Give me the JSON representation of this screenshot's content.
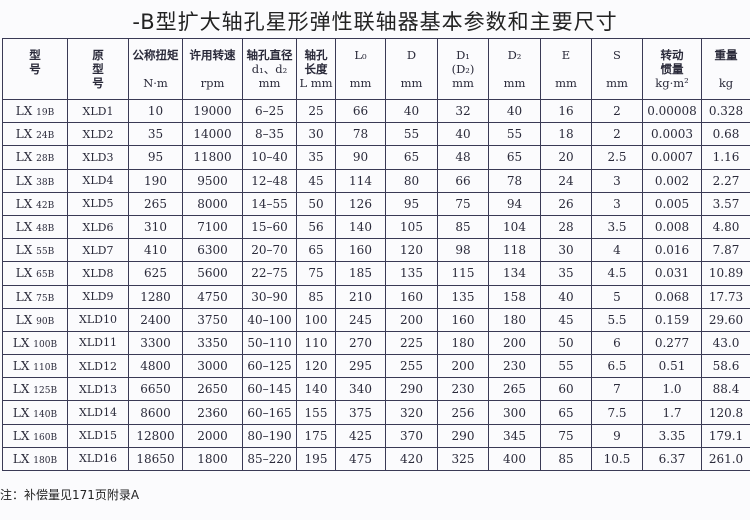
{
  "title": "-B型扩大轴孔星形弹性联轴器基本参数和主要尺寸",
  "headers": [
    {
      "l1": "型",
      "l2": "号",
      "l3": ""
    },
    {
      "l1": "原",
      "l2": "型",
      "l3": "号"
    },
    {
      "l1": "公称扭矩",
      "l2": "",
      "l3": "N·m"
    },
    {
      "l1": "许用转速",
      "l2": "",
      "l3": "rpm"
    },
    {
      "l1": "轴孔直径",
      "l2": "d₁、d₂",
      "l3": "mm"
    },
    {
      "l1": "轴孔",
      "l2": "长度",
      "l3": "L mm"
    },
    {
      "l1": "L₀",
      "l2": "",
      "l3": "mm"
    },
    {
      "l1": "D",
      "l2": "",
      "l3": "mm"
    },
    {
      "l1": "D₁",
      "l2": "(D₂)",
      "l3": "mm"
    },
    {
      "l1": "D₂",
      "l2": "",
      "l3": "mm"
    },
    {
      "l1": "E",
      "l2": "",
      "l3": "mm"
    },
    {
      "l1": "S",
      "l2": "",
      "l3": "mm"
    },
    {
      "l1": "转动",
      "l2": "惯量",
      "l3": "kg·m²"
    },
    {
      "l1": "重量",
      "l2": "",
      "l3": "kg"
    }
  ],
  "rows": [
    [
      "LX",
      "19B",
      "XLD1",
      "10",
      "19000",
      "6–25",
      "25",
      "66",
      "40",
      "32",
      "40",
      "16",
      "2",
      "0.00008",
      "0.328"
    ],
    [
      "LX",
      "24B",
      "XLD2",
      "35",
      "14000",
      "8–35",
      "30",
      "78",
      "55",
      "40",
      "55",
      "18",
      "2",
      "0.0003",
      "0.68"
    ],
    [
      "LX",
      "28B",
      "XLD3",
      "95",
      "11800",
      "10–40",
      "35",
      "90",
      "65",
      "48",
      "65",
      "20",
      "2.5",
      "0.0007",
      "1.16"
    ],
    [
      "LX",
      "38B",
      "XLD4",
      "190",
      "9500",
      "12–48",
      "45",
      "114",
      "80",
      "66",
      "78",
      "24",
      "3",
      "0.002",
      "2.27"
    ],
    [
      "LX",
      "42B",
      "XLD5",
      "265",
      "8000",
      "14–55",
      "50",
      "126",
      "95",
      "75",
      "94",
      "26",
      "3",
      "0.005",
      "3.57"
    ],
    [
      "LX",
      "48B",
      "XLD6",
      "310",
      "7100",
      "15–60",
      "56",
      "140",
      "105",
      "85",
      "104",
      "28",
      "3.5",
      "0.008",
      "4.80"
    ],
    [
      "LX",
      "55B",
      "XLD7",
      "410",
      "6300",
      "20–70",
      "65",
      "160",
      "120",
      "98",
      "118",
      "30",
      "4",
      "0.016",
      "7.87"
    ],
    [
      "LX",
      "65B",
      "XLD8",
      "625",
      "5600",
      "22–75",
      "75",
      "185",
      "135",
      "115",
      "134",
      "35",
      "4.5",
      "0.031",
      "10.89"
    ],
    [
      "LX",
      "75B",
      "XLD9",
      "1280",
      "4750",
      "30–90",
      "85",
      "210",
      "160",
      "135",
      "158",
      "40",
      "5",
      "0.068",
      "17.73"
    ],
    [
      "LX",
      "90B",
      "XLD10",
      "2400",
      "3750",
      "40–100",
      "100",
      "245",
      "200",
      "160",
      "180",
      "45",
      "5.5",
      "0.159",
      "29.60"
    ],
    [
      "LX",
      "100B",
      "XLD11",
      "3300",
      "3350",
      "50–110",
      "110",
      "270",
      "225",
      "180",
      "200",
      "50",
      "6",
      "0.277",
      "43.0"
    ],
    [
      "LX",
      "110B",
      "XLD12",
      "4800",
      "3000",
      "60–125",
      "120",
      "295",
      "255",
      "200",
      "230",
      "55",
      "6.5",
      "0.51",
      "58.6"
    ],
    [
      "LX",
      "125B",
      "XLD13",
      "6650",
      "2650",
      "60–145",
      "140",
      "340",
      "290",
      "230",
      "265",
      "60",
      "7",
      "1.0",
      "88.4"
    ],
    [
      "LX",
      "140B",
      "XLD14",
      "8600",
      "2360",
      "60–165",
      "155",
      "375",
      "320",
      "256",
      "300",
      "65",
      "7.5",
      "1.7",
      "120.8"
    ],
    [
      "LX",
      "160B",
      "XLD15",
      "12800",
      "2000",
      "80–190",
      "175",
      "425",
      "370",
      "290",
      "345",
      "75",
      "9",
      "3.35",
      "179.1"
    ],
    [
      "LX",
      "180B",
      "XLD16",
      "18650",
      "1800",
      "85–220",
      "195",
      "475",
      "420",
      "325",
      "400",
      "85",
      "10.5",
      "6.37",
      "261.0"
    ]
  ],
  "note": "注：补偿量见171页附录A"
}
